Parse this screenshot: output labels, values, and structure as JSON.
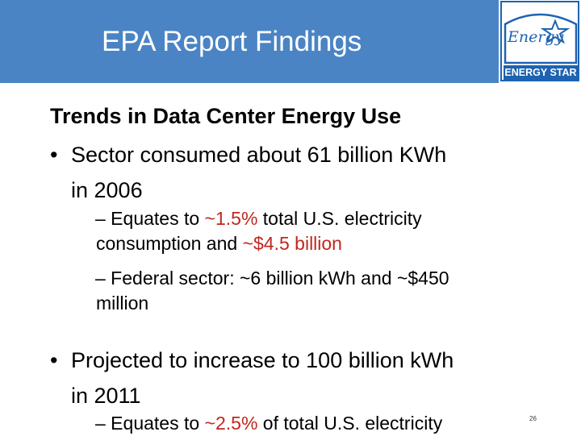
{
  "header": {
    "title": "EPA Report Findings",
    "bg_color": "#4a84c4",
    "logo": {
      "script_text": "Energy",
      "label": "ENERGY STAR",
      "icon": "energy-star-logo"
    }
  },
  "body": {
    "heading": "Trends in Data Center Energy Use",
    "bullet1": {
      "line1": "Sector consumed about 61 billion KWh",
      "line2": "in 2006",
      "subs": [
        {
          "pre": "– Equates to ",
          "red1": "~1.5%",
          "mid": " total U.S. electricity",
          "line2_pre": "consumption and ",
          "red2": "~$4.5 billion"
        },
        {
          "line1": "– Federal sector: ~6 billion kWh and ~$450",
          "line2": "million"
        }
      ]
    },
    "bullet2": {
      "line1": "Projected to increase to 100 billion kWh",
      "line2": "in 2011",
      "sub": {
        "pre": "– Equates to ",
        "red": "~2.5%",
        "post": " of total U.S. electricity"
      }
    },
    "bullet_symbol": "•",
    "accent_color": "#c0271e"
  },
  "page_number": "26"
}
